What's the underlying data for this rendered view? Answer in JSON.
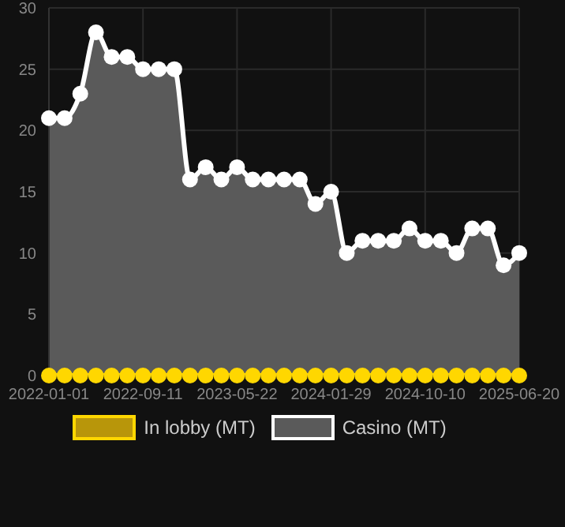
{
  "chart_data": {
    "type": "line",
    "categories": [
      "2022-01-01",
      null,
      null,
      null,
      null,
      null,
      "2022-09-11",
      null,
      null,
      null,
      null,
      null,
      "2023-05-22",
      null,
      null,
      null,
      null,
      null,
      "2024-01-29",
      null,
      null,
      null,
      null,
      null,
      "2024-10-10",
      null,
      null,
      null,
      null,
      null,
      "2025-06-20"
    ],
    "series": [
      {
        "name": "In lobby (MT)",
        "color": "#ffd700",
        "values": [
          0,
          0,
          0,
          0,
          0,
          0,
          0,
          0,
          0,
          0,
          0,
          0,
          0,
          0,
          0,
          0,
          0,
          0,
          0,
          0,
          0,
          0,
          0,
          0,
          0,
          0,
          0,
          0,
          0,
          0,
          0
        ]
      },
      {
        "name": "Casino (MT)",
        "type": "area",
        "color": "#ffffff",
        "values": [
          21,
          21,
          23,
          28,
          26,
          26,
          25,
          25,
          25,
          16,
          17,
          16,
          17,
          16,
          16,
          16,
          16,
          14,
          15,
          10,
          11,
          11,
          11,
          12,
          11,
          11,
          10,
          12,
          12,
          9,
          10
        ]
      }
    ],
    "ylim": [
      0,
      30
    ],
    "yticks": [
      0,
      5,
      10,
      15,
      20,
      25,
      30
    ],
    "grid": true,
    "legend": "bottom",
    "marker": "circle"
  }
}
